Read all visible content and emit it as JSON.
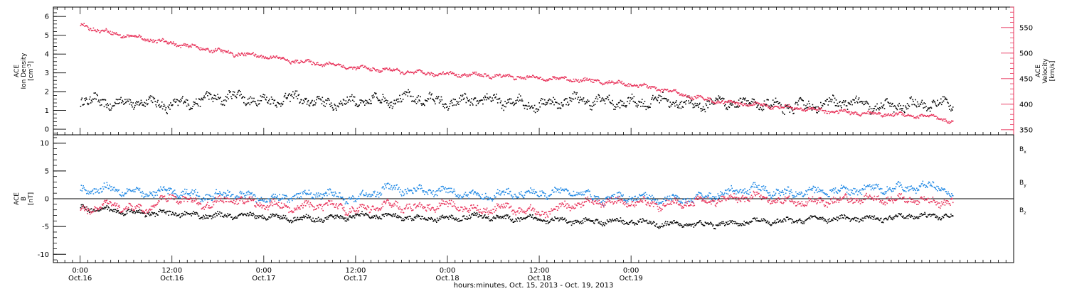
{
  "chart_data": [
    {
      "type": "scatter",
      "panel": "plasma",
      "left_axis": {
        "label_lines": [
          "ACE",
          "Ion Density",
          "[cm^-3]"
        ],
        "ylim": [
          -0.3,
          6.5
        ],
        "ticks": [
          0,
          1,
          2,
          3,
          4,
          5,
          6
        ],
        "color": "#000000"
      },
      "right_axis": {
        "label_lines": [
          "ACE",
          "Velocity",
          "[km/s]"
        ],
        "ylim": [
          340,
          590
        ],
        "ticks": [
          350,
          400,
          450,
          500,
          550
        ],
        "color": "#e8325a"
      },
      "series": [
        {
          "name": "Ion Density",
          "axis": "left",
          "color": "#000000",
          "x_hours": [
            0,
            4,
            8,
            12,
            16,
            20,
            24,
            28,
            32,
            36,
            40,
            44,
            48,
            52,
            56,
            60,
            64,
            68,
            72,
            76,
            80,
            84,
            88,
            92,
            96,
            100,
            104,
            108,
            112,
            114
          ],
          "values": [
            1.6,
            1.4,
            1.5,
            1.3,
            1.6,
            1.8,
            1.5,
            1.7,
            1.4,
            1.5,
            1.6,
            1.7,
            1.4,
            1.6,
            1.5,
            1.3,
            1.6,
            1.5,
            1.4,
            1.6,
            1.3,
            1.5,
            1.4,
            1.2,
            1.3,
            1.5,
            1.2,
            1.3,
            1.4,
            1.3
          ],
          "spread": 0.6
        },
        {
          "name": "Velocity",
          "axis": "right",
          "color": "#e8325a",
          "x_hours": [
            0,
            4,
            8,
            12,
            16,
            20,
            24,
            28,
            32,
            36,
            40,
            44,
            48,
            52,
            56,
            60,
            64,
            68,
            72,
            76,
            80,
            84,
            88,
            92,
            96,
            100,
            104,
            108,
            112,
            114
          ],
          "values": [
            555,
            540,
            530,
            520,
            510,
            500,
            495,
            485,
            480,
            472,
            468,
            462,
            460,
            458,
            455,
            452,
            450,
            445,
            440,
            430,
            415,
            405,
            400,
            395,
            390,
            385,
            382,
            380,
            375,
            365
          ],
          "spread": 8
        }
      ]
    },
    {
      "type": "scatter",
      "panel": "magnetic-field",
      "left_axis": {
        "label_lines": [
          "ACE",
          "B",
          "[nT]"
        ],
        "ylim": [
          -11.5,
          11.5
        ],
        "ticks": [
          -10,
          -5,
          0,
          5,
          10
        ],
        "color": "#000000"
      },
      "series": [
        {
          "name": "Bx",
          "label_main": "B",
          "label_sub": "x",
          "color": "#000000",
          "x_hours": [
            0,
            4,
            8,
            12,
            16,
            20,
            24,
            28,
            32,
            36,
            40,
            44,
            48,
            52,
            56,
            60,
            64,
            68,
            72,
            76,
            80,
            84,
            88,
            92,
            96,
            100,
            104,
            108,
            112,
            114
          ],
          "values": [
            -1.5,
            -2.0,
            -2.5,
            -2.5,
            -3.0,
            -3.0,
            -3.0,
            -3.5,
            -3.5,
            -3.0,
            -3.0,
            -3.5,
            -3.5,
            -3.0,
            -3.5,
            -3.5,
            -4.0,
            -4.0,
            -4.0,
            -4.5,
            -4.5,
            -4.5,
            -4.0,
            -4.0,
            -3.5,
            -3.5,
            -3.5,
            -3.0,
            -3.0,
            -3.0
          ],
          "spread": 1.0
        },
        {
          "name": "By",
          "label_main": "B",
          "label_sub": "y",
          "color": "#1e88e5",
          "x_hours": [
            0,
            4,
            8,
            12,
            16,
            20,
            24,
            28,
            32,
            36,
            40,
            44,
            48,
            52,
            56,
            60,
            64,
            68,
            72,
            76,
            80,
            84,
            88,
            92,
            96,
            100,
            104,
            108,
            112,
            114
          ],
          "values": [
            1.5,
            2.0,
            1.0,
            1.5,
            0.5,
            1.0,
            0.0,
            0.5,
            1.0,
            0.0,
            2.0,
            1.5,
            1.5,
            0.5,
            1.0,
            1.0,
            1.5,
            0.0,
            0.5,
            0.0,
            0.0,
            1.0,
            2.0,
            1.0,
            1.5,
            1.5,
            2.0,
            2.0,
            2.5,
            0.5
          ],
          "spread": 1.5
        },
        {
          "name": "Bz",
          "label_main": "B",
          "label_sub": "z",
          "color": "#e8325a",
          "x_hours": [
            0,
            4,
            8,
            12,
            16,
            20,
            24,
            28,
            32,
            36,
            40,
            44,
            48,
            52,
            56,
            60,
            64,
            68,
            72,
            76,
            80,
            84,
            88,
            92,
            96,
            100,
            104,
            108,
            112,
            114
          ],
          "values": [
            -2.0,
            -1.0,
            -2.0,
            0.5,
            -1.0,
            0.0,
            -1.0,
            -1.5,
            -1.0,
            -2.0,
            -1.0,
            -1.5,
            -1.0,
            -2.0,
            -1.5,
            -2.5,
            -1.0,
            -0.5,
            -0.5,
            -1.0,
            -0.5,
            0.0,
            0.5,
            -0.5,
            -0.5,
            0.0,
            0.0,
            0.0,
            -0.5,
            -0.5
          ],
          "spread": 1.5
        }
      ]
    }
  ],
  "time_axis": {
    "range_hours": [
      -3.5,
      122
    ],
    "ticks": [
      {
        "hour": 0,
        "time": "0:00",
        "date": "Oct.16"
      },
      {
        "hour": 12,
        "time": "12:00",
        "date": "Oct.16"
      },
      {
        "hour": 24,
        "time": "0:00",
        "date": "Oct.17"
      },
      {
        "hour": 36,
        "time": "12:00",
        "date": "Oct.17"
      },
      {
        "hour": 48,
        "time": "0:00",
        "date": "Oct.18"
      },
      {
        "hour": 60,
        "time": "12:00",
        "date": "Oct.18"
      },
      {
        "hour": 72,
        "time": "0:00",
        "date": "Oct.19"
      }
    ],
    "xlabel": "hours:minutes, Oct. 15, 2013 - Oct. 19, 2013"
  }
}
